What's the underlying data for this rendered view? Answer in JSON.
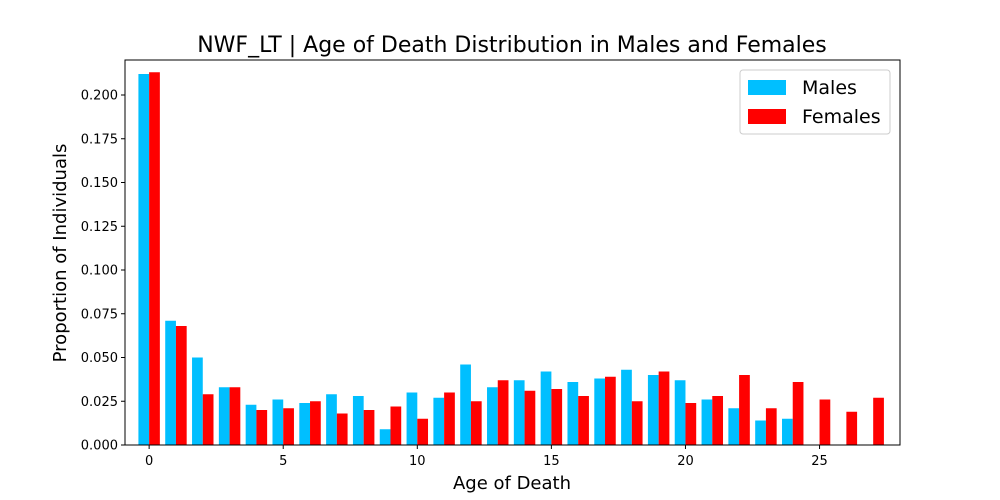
{
  "chart_data": {
    "type": "bar",
    "title": "NWF_LT | Age of Death Distribution in Males and Females",
    "xlabel": "Age of Death",
    "ylabel": "Proportion of Individuals",
    "xlim": [
      -0.9,
      28.0
    ],
    "ylim": [
      0,
      0.22
    ],
    "xticks": [
      0,
      5,
      10,
      15,
      20,
      25
    ],
    "yticks": [
      0.0,
      0.025,
      0.05,
      0.075,
      0.1,
      0.125,
      0.15,
      0.175,
      0.2
    ],
    "ytick_labels": [
      "0.000",
      "0.025",
      "0.050",
      "0.075",
      "0.100",
      "0.125",
      "0.150",
      "0.175",
      "0.200"
    ],
    "grid": false,
    "legend_position": "top-right",
    "categories": [
      0,
      1,
      2,
      3,
      4,
      5,
      6,
      7,
      8,
      9,
      10,
      11,
      12,
      13,
      14,
      15,
      16,
      17,
      18,
      19,
      20,
      21,
      22,
      23,
      24,
      25,
      26,
      27
    ],
    "series": [
      {
        "name": "Males",
        "color": "#00bfff",
        "values": [
          0.212,
          0.071,
          0.05,
          0.033,
          0.023,
          0.026,
          0.024,
          0.029,
          0.028,
          0.009,
          0.03,
          0.027,
          0.046,
          0.033,
          0.037,
          0.042,
          0.036,
          0.038,
          0.043,
          0.04,
          0.037,
          0.026,
          0.021,
          0.014,
          0.015,
          0,
          0,
          0
        ]
      },
      {
        "name": "Females",
        "color": "#ff0000",
        "values": [
          0.213,
          0.068,
          0.029,
          0.033,
          0.02,
          0.021,
          0.025,
          0.018,
          0.02,
          0.022,
          0.015,
          0.03,
          0.025,
          0.037,
          0.031,
          0.032,
          0.028,
          0.039,
          0.025,
          0.042,
          0.024,
          0.028,
          0.04,
          0.021,
          0.036,
          0.026,
          0.019,
          0.027
        ]
      }
    ]
  }
}
